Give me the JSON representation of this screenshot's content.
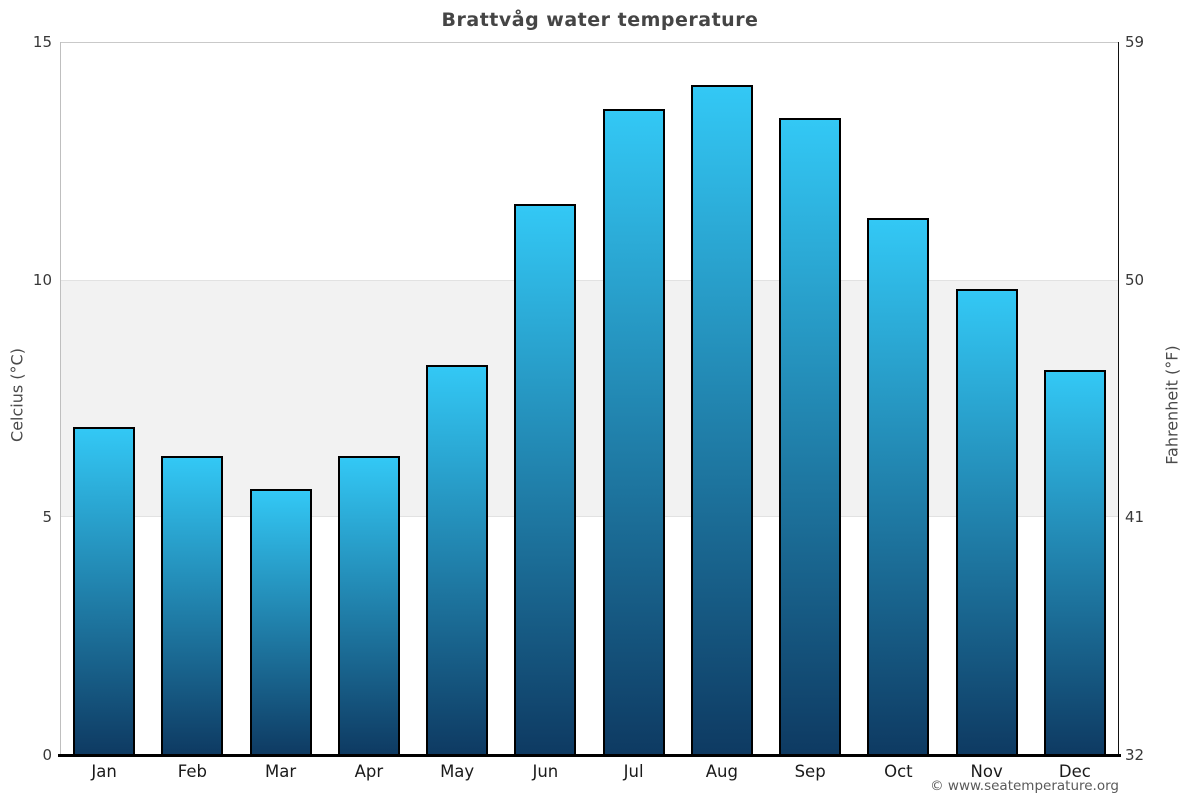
{
  "title": "Brattvåg water temperature",
  "attribution": "© www.seatemperature.org",
  "chart_data": {
    "type": "bar",
    "title": "Brattvåg water temperature",
    "categories": [
      "Jan",
      "Feb",
      "Mar",
      "Apr",
      "May",
      "Jun",
      "Jul",
      "Aug",
      "Sep",
      "Oct",
      "Nov",
      "Dec"
    ],
    "values": [
      6.9,
      6.3,
      5.6,
      6.3,
      8.2,
      11.6,
      13.6,
      14.1,
      13.4,
      11.3,
      9.8,
      8.1
    ],
    "ylabel_left": "Celcius (°C)",
    "ylabel_right": "Fahrenheit (°F)",
    "ylim": [
      0,
      15
    ],
    "ylim_right": [
      32,
      59
    ],
    "yticks_left": [
      0,
      5,
      10,
      15
    ],
    "yticks_right": [
      32,
      41,
      50,
      59
    ],
    "shaded_band_celsius": [
      5,
      10
    ],
    "grid": "horizontal-band",
    "legend": "none",
    "bar_color_top": "#33c8f5",
    "bar_color_bottom": "#0e3a62",
    "bar_border_color": "#000000",
    "band_color": "#f2f2f2"
  }
}
